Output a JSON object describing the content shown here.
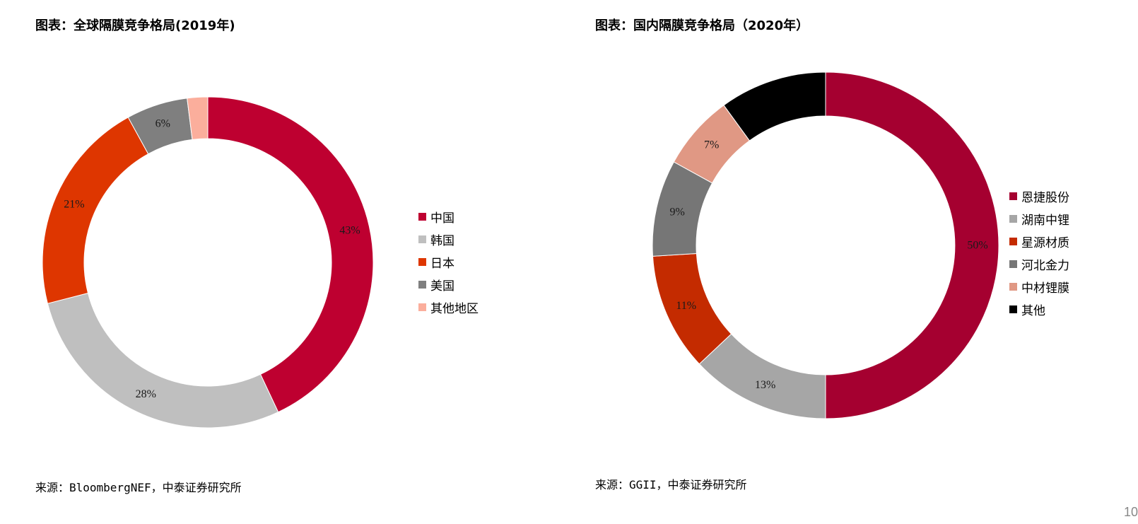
{
  "charts": [
    {
      "title": "图表：全球隔膜竞争格局(2019年)",
      "source": "来源：BloombergNEF，中泰证券研究所"
    },
    {
      "title": "图表：国内隔膜竞争格局（2020年）",
      "source": "来源：GGII，中泰证券研究所"
    }
  ],
  "page_number": "10",
  "chart_data": [
    {
      "type": "pie",
      "title": "图表：全球隔膜竞争格局(2019年)",
      "donut": true,
      "legend_position": "right",
      "series": [
        {
          "name": "中国",
          "value": 43,
          "label": "43%",
          "color": "#BE0030"
        },
        {
          "name": "韩国",
          "value": 28,
          "label": "28%",
          "color": "#BFBFBF"
        },
        {
          "name": "日本",
          "value": 21,
          "label": "21%",
          "color": "#DE3600"
        },
        {
          "name": "美国",
          "value": 6,
          "label": "6%",
          "color": "#7F7F7F"
        },
        {
          "name": "其他地区",
          "value": 2,
          "label": "",
          "color": "#FBAE9C"
        }
      ]
    },
    {
      "type": "pie",
      "title": "图表：国内隔膜竞争格局（2020年）",
      "donut": true,
      "legend_position": "right",
      "series": [
        {
          "name": "恩捷股份",
          "value": 50,
          "label": "50%",
          "color": "#A50030"
        },
        {
          "name": "湖南中锂",
          "value": 13,
          "label": "13%",
          "color": "#A6A6A6"
        },
        {
          "name": "星源材质",
          "value": 11,
          "label": "11%",
          "color": "#C42B00"
        },
        {
          "name": "河北金力",
          "value": 9,
          "label": "9%",
          "color": "#767676"
        },
        {
          "name": "中材锂膜",
          "value": 7,
          "label": "7%",
          "color": "#E09884"
        },
        {
          "name": "其他",
          "value": 10,
          "label": "",
          "color": "#000000"
        }
      ]
    }
  ]
}
